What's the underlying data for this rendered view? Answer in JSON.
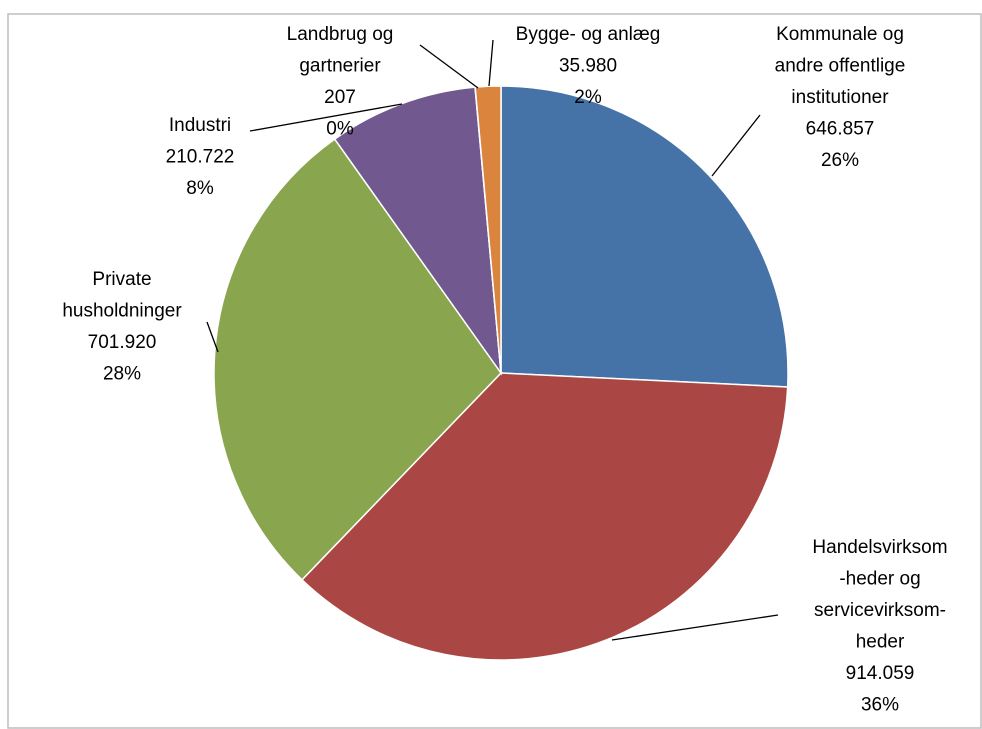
{
  "chart_data": {
    "type": "pie",
    "categories": [
      [
        "Kommunale og",
        "andre offentlige",
        "institutioner"
      ],
      [
        "Handelsvirksom",
        "-heder og",
        "servicevirksom-",
        "heder"
      ],
      [
        "Private",
        "husholdninger"
      ],
      [
        "Industri"
      ],
      [
        "Landbrug og",
        "gartnerier"
      ],
      [
        "Bygge- og anlæg"
      ]
    ],
    "values": [
      646857,
      914059,
      701920,
      210722,
      207,
      35980
    ],
    "value_labels": [
      "646.857",
      "914.059",
      "701.920",
      "210.722",
      "207",
      "35.980"
    ],
    "percents": [
      {
        "value": 26,
        "label": "26%"
      },
      {
        "value": 36,
        "label": "36%"
      },
      {
        "value": 28,
        "label": "28%"
      },
      {
        "value": 8,
        "label": "8%"
      },
      {
        "value": 0,
        "label": "0%"
      },
      {
        "value": 2,
        "label": "2%"
      }
    ],
    "colors": [
      "#4572a7",
      "#aa4643",
      "#89a54e",
      "#71588f",
      "#4198af",
      "#db843d"
    ]
  }
}
